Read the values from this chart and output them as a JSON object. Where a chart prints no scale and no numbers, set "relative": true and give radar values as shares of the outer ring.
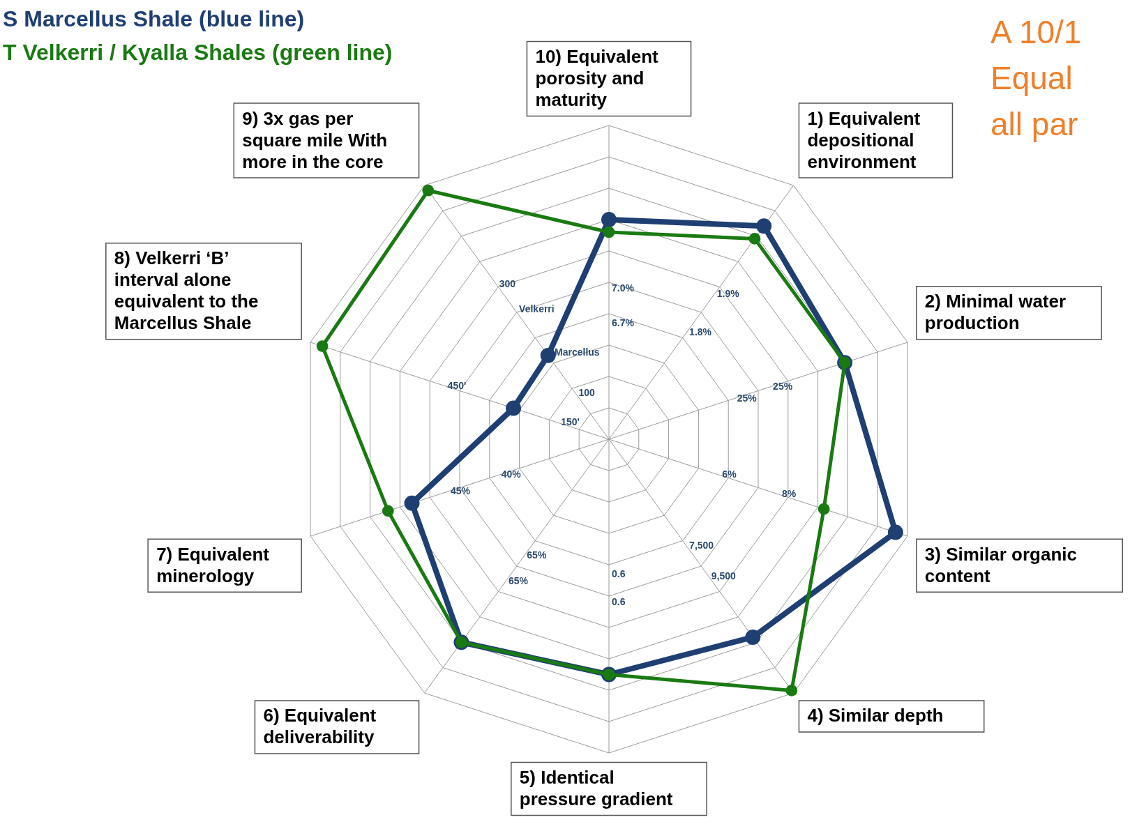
{
  "chart_data": {
    "type": "radar",
    "relative": true,
    "marker": "circle",
    "categories": [
      "10) Equivalent porosity and maturity",
      "1) Equivalent depositional environment",
      "2) Minimal water production",
      "3) Similar organic content",
      "4) Similar depth",
      "5) Identical pressure gradient",
      "6) Equivalent deliverability",
      "7) Equivalent minerology",
      "8) Velkerri ‘B’ interval alone equivalent to the Marcellus Shale",
      "9) 3x gas per square mile With more in the core"
    ],
    "series": [
      {
        "name": "S Marcellus Shale (blue line)",
        "color": "#1f3f73",
        "values": [
          0.7,
          0.84,
          0.79,
          0.96,
          0.78,
          0.75,
          0.8,
          0.66,
          0.32,
          0.33
        ]
      },
      {
        "name": "T Velkerri / Kyalla Shales (green line)",
        "color": "#1a7a12",
        "values": [
          0.66,
          0.79,
          0.79,
          0.72,
          0.99,
          0.75,
          0.8,
          0.74,
          0.96,
          0.98
        ]
      }
    ],
    "annotations": [
      "A 10/1",
      "Equal",
      "all par",
      "7.0%",
      "6.7%",
      "1.9%",
      "1.8%",
      "25%",
      "25%",
      "8%",
      "6%",
      "7,500",
      "9,500",
      "0.6",
      "0.6",
      "65%",
      "65%",
      "40%",
      "45%",
      "450'",
      "150'",
      "100",
      "300",
      "Velkerri",
      "Marcellus"
    ]
  }
}
